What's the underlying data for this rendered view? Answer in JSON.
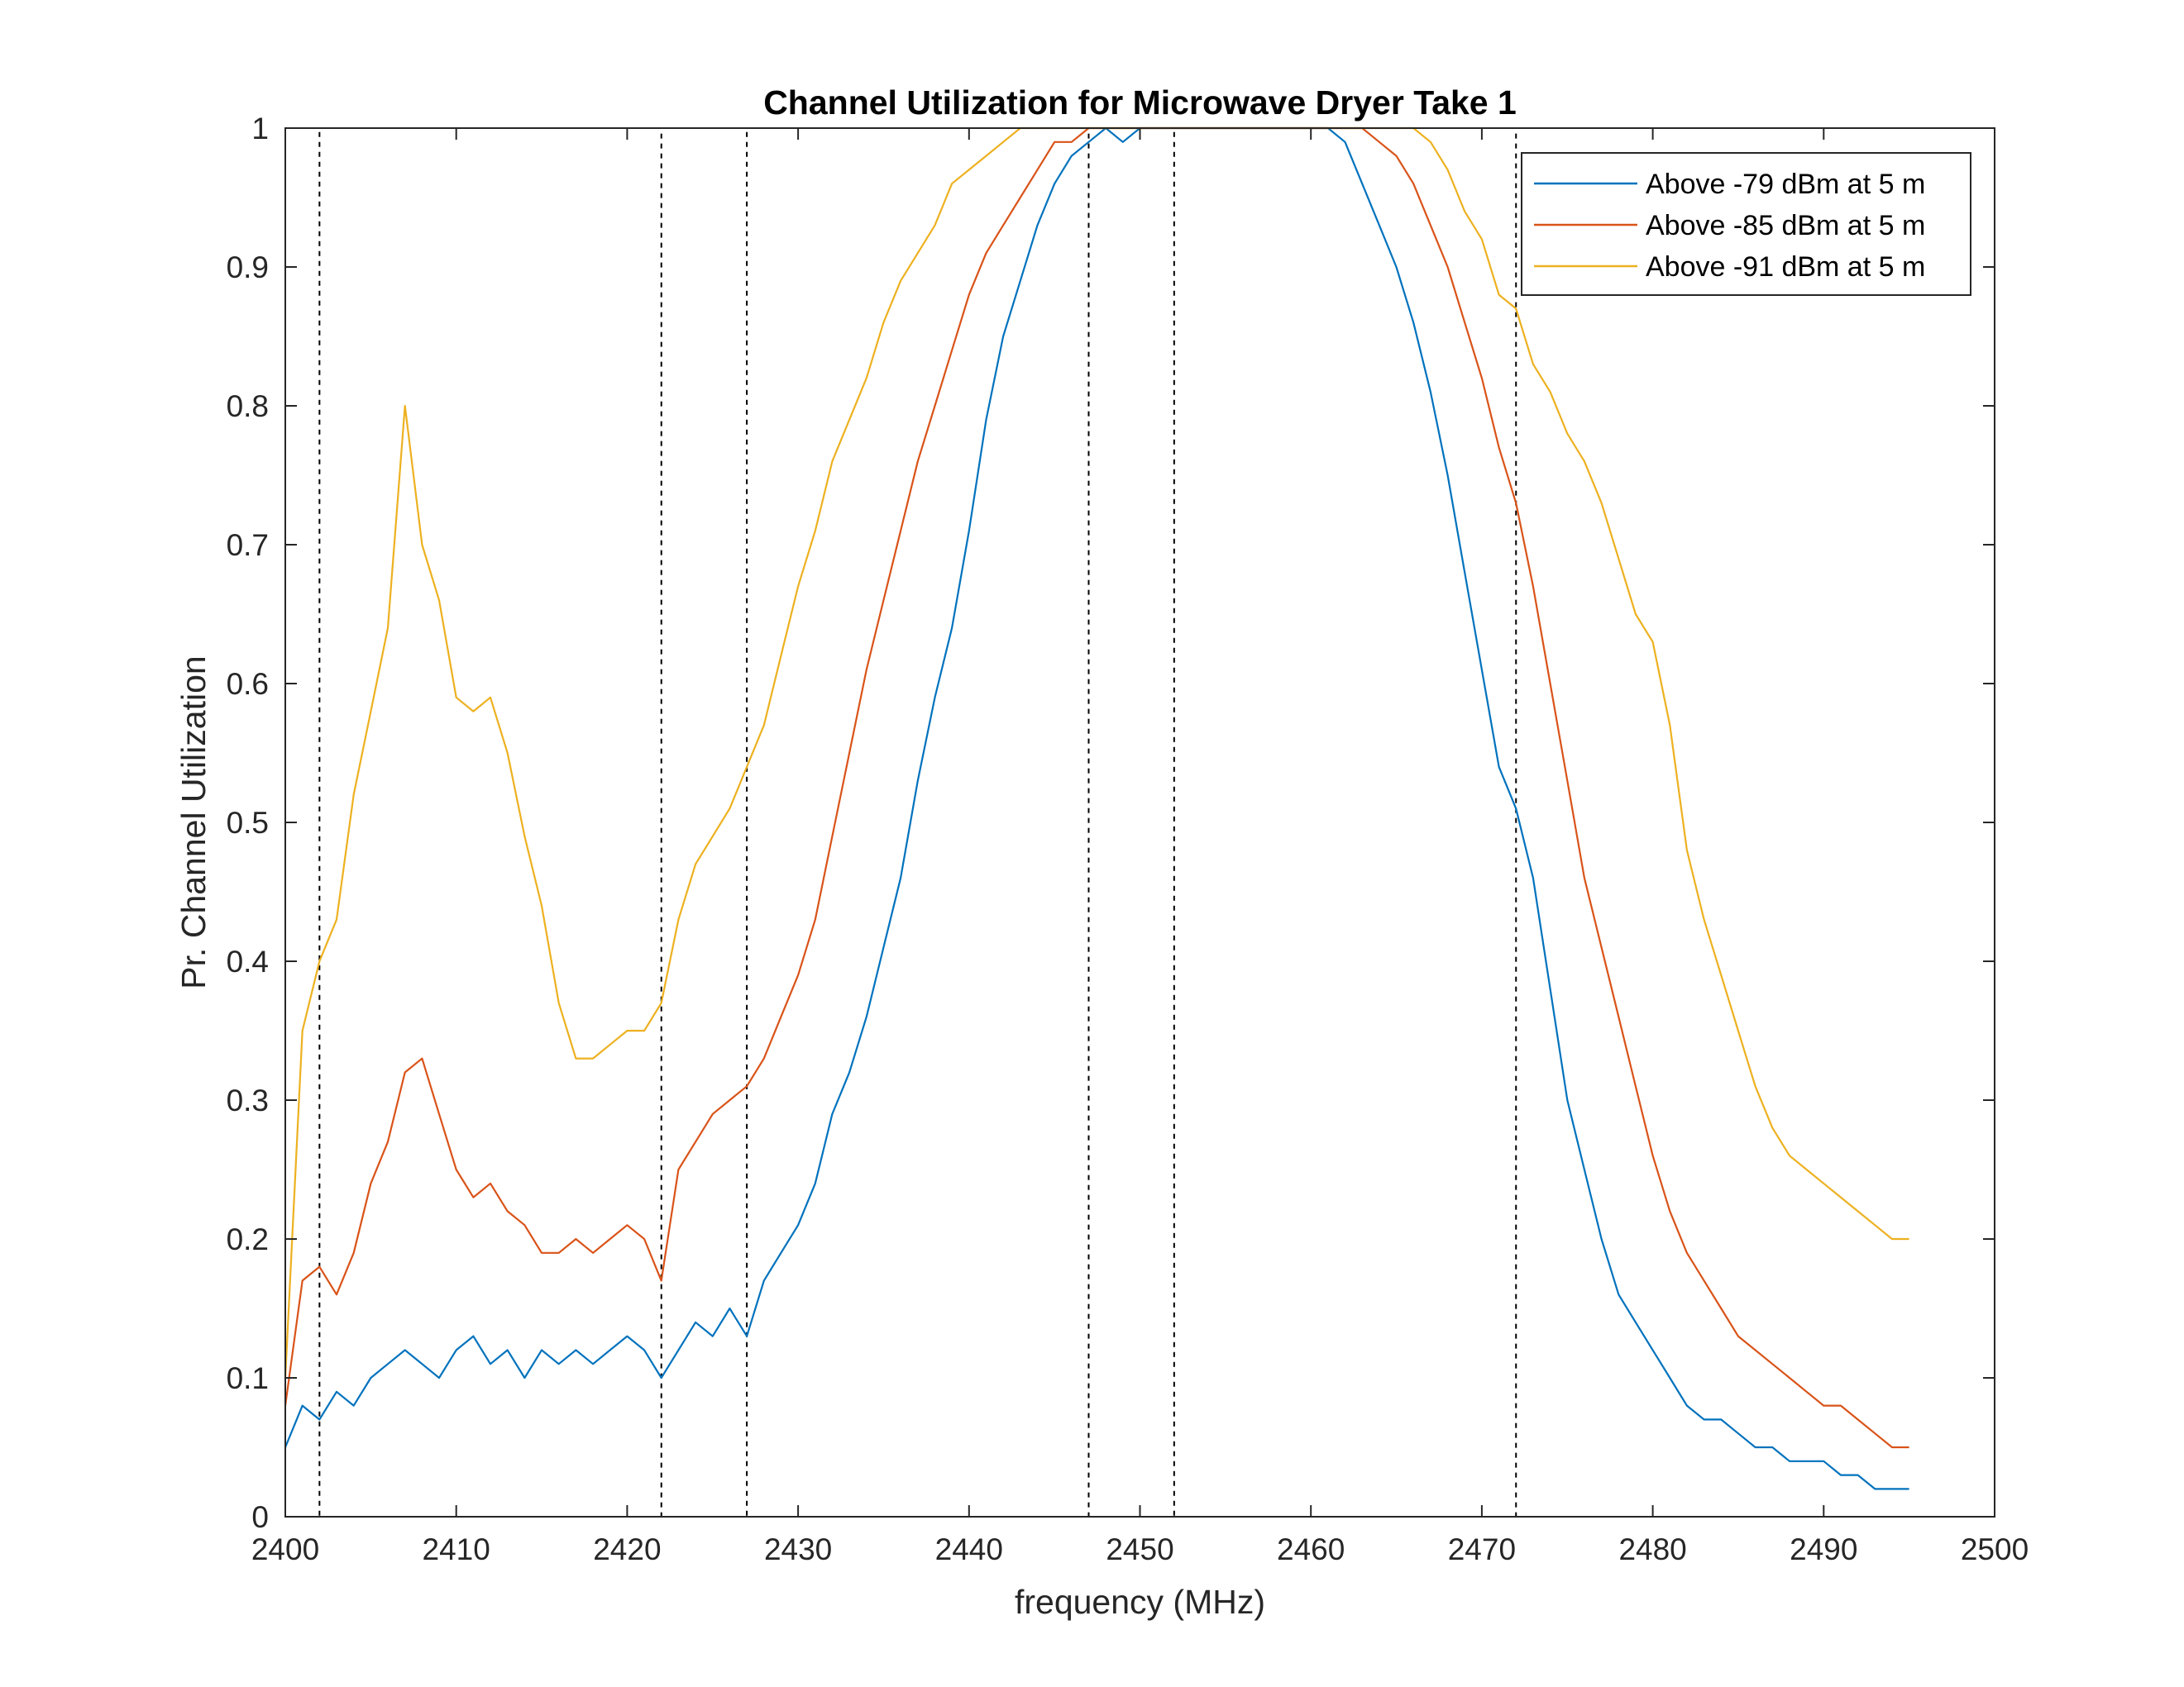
{
  "chart_data": {
    "type": "line",
    "title": "Channel Utilization for Microwave Dryer Take 1",
    "xlabel": "frequency (MHz)",
    "ylabel": "Pr. Channel Utilization",
    "xlim": [
      2400,
      2500
    ],
    "ylim": [
      0,
      1
    ],
    "xticks": [
      2400,
      2410,
      2420,
      2430,
      2440,
      2450,
      2460,
      2470,
      2480,
      2490,
      2500
    ],
    "yticks": [
      0,
      0.1,
      0.2,
      0.3,
      0.4,
      0.5,
      0.6,
      0.7,
      0.8,
      0.9,
      1
    ],
    "grid": false,
    "legend_position": "top-right",
    "channel_boxes": [
      [
        2402,
        2422
      ],
      [
        2427,
        2447
      ],
      [
        2452,
        2472
      ]
    ],
    "series": [
      {
        "name": "Above -79 dBm at 5 m",
        "color": "#0072BD",
        "x": [
          2400,
          2401,
          2402,
          2403,
          2404,
          2405,
          2406,
          2407,
          2408,
          2409,
          2410,
          2411,
          2412,
          2413,
          2414,
          2415,
          2416,
          2417,
          2418,
          2419,
          2420,
          2421,
          2422,
          2423,
          2424,
          2425,
          2426,
          2427,
          2428,
          2429,
          2430,
          2431,
          2432,
          2433,
          2434,
          2435,
          2436,
          2437,
          2438,
          2439,
          2440,
          2441,
          2442,
          2443,
          2444,
          2445,
          2446,
          2447,
          2448,
          2449,
          2450,
          2451,
          2452,
          2453,
          2454,
          2455,
          2456,
          2457,
          2458,
          2459,
          2460,
          2461,
          2462,
          2463,
          2464,
          2465,
          2466,
          2467,
          2468,
          2469,
          2470,
          2471,
          2472,
          2473,
          2474,
          2475,
          2476,
          2477,
          2478,
          2479,
          2480,
          2481,
          2482,
          2483,
          2484,
          2485,
          2486,
          2487,
          2488,
          2489,
          2490,
          2491,
          2492,
          2493,
          2494,
          2495
        ],
        "y": [
          0.05,
          0.08,
          0.07,
          0.09,
          0.08,
          0.1,
          0.11,
          0.12,
          0.11,
          0.1,
          0.12,
          0.13,
          0.11,
          0.12,
          0.1,
          0.12,
          0.11,
          0.12,
          0.11,
          0.12,
          0.13,
          0.12,
          0.1,
          0.12,
          0.14,
          0.13,
          0.15,
          0.13,
          0.17,
          0.19,
          0.21,
          0.24,
          0.29,
          0.32,
          0.36,
          0.41,
          0.46,
          0.53,
          0.59,
          0.64,
          0.71,
          0.79,
          0.85,
          0.89,
          0.93,
          0.96,
          0.98,
          0.99,
          1.0,
          0.99,
          1.0,
          1.0,
          1.0,
          1.0,
          1.0,
          1.0,
          1.0,
          1.0,
          1.0,
          1.0,
          1.0,
          1.0,
          0.99,
          0.96,
          0.93,
          0.9,
          0.86,
          0.81,
          0.75,
          0.68,
          0.61,
          0.54,
          0.51,
          0.46,
          0.38,
          0.3,
          0.25,
          0.2,
          0.16,
          0.14,
          0.12,
          0.1,
          0.08,
          0.07,
          0.07,
          0.06,
          0.05,
          0.05,
          0.04,
          0.04,
          0.04,
          0.03,
          0.03,
          0.02,
          0.02,
          0.02
        ]
      },
      {
        "name": "Above -85 dBm at 5 m",
        "color": "#D95319",
        "x": [
          2400,
          2401,
          2402,
          2403,
          2404,
          2405,
          2406,
          2407,
          2408,
          2409,
          2410,
          2411,
          2412,
          2413,
          2414,
          2415,
          2416,
          2417,
          2418,
          2419,
          2420,
          2421,
          2422,
          2423,
          2424,
          2425,
          2426,
          2427,
          2428,
          2429,
          2430,
          2431,
          2432,
          2433,
          2434,
          2435,
          2436,
          2437,
          2438,
          2439,
          2440,
          2441,
          2442,
          2443,
          2444,
          2445,
          2446,
          2447,
          2448,
          2449,
          2450,
          2451,
          2452,
          2453,
          2454,
          2455,
          2456,
          2457,
          2458,
          2459,
          2460,
          2461,
          2462,
          2463,
          2464,
          2465,
          2466,
          2467,
          2468,
          2469,
          2470,
          2471,
          2472,
          2473,
          2474,
          2475,
          2476,
          2477,
          2478,
          2479,
          2480,
          2481,
          2482,
          2483,
          2484,
          2485,
          2486,
          2487,
          2488,
          2489,
          2490,
          2491,
          2492,
          2493,
          2494,
          2495
        ],
        "y": [
          0.08,
          0.17,
          0.18,
          0.16,
          0.19,
          0.24,
          0.27,
          0.32,
          0.33,
          0.29,
          0.25,
          0.23,
          0.24,
          0.22,
          0.21,
          0.19,
          0.19,
          0.2,
          0.19,
          0.2,
          0.21,
          0.2,
          0.17,
          0.25,
          0.27,
          0.29,
          0.3,
          0.31,
          0.33,
          0.36,
          0.39,
          0.43,
          0.49,
          0.55,
          0.61,
          0.66,
          0.71,
          0.76,
          0.8,
          0.84,
          0.88,
          0.91,
          0.93,
          0.95,
          0.97,
          0.99,
          0.99,
          1.0,
          1.0,
          1.0,
          1.0,
          1.0,
          1.0,
          1.0,
          1.0,
          1.0,
          1.0,
          1.0,
          1.0,
          1.0,
          1.0,
          1.0,
          1.0,
          1.0,
          0.99,
          0.98,
          0.96,
          0.93,
          0.9,
          0.86,
          0.82,
          0.77,
          0.73,
          0.67,
          0.6,
          0.53,
          0.46,
          0.41,
          0.36,
          0.31,
          0.26,
          0.22,
          0.19,
          0.17,
          0.15,
          0.13,
          0.12,
          0.11,
          0.1,
          0.09,
          0.08,
          0.08,
          0.07,
          0.06,
          0.05,
          0.05
        ]
      },
      {
        "name": "Above -91 dBm at 5 m",
        "color": "#EDB120",
        "x": [
          2400,
          2401,
          2402,
          2403,
          2404,
          2405,
          2406,
          2407,
          2408,
          2409,
          2410,
          2411,
          2412,
          2413,
          2414,
          2415,
          2416,
          2417,
          2418,
          2419,
          2420,
          2421,
          2422,
          2423,
          2424,
          2425,
          2426,
          2427,
          2428,
          2429,
          2430,
          2431,
          2432,
          2433,
          2434,
          2435,
          2436,
          2437,
          2438,
          2439,
          2440,
          2441,
          2442,
          2443,
          2444,
          2445,
          2446,
          2447,
          2448,
          2449,
          2450,
          2451,
          2452,
          2453,
          2454,
          2455,
          2456,
          2457,
          2458,
          2459,
          2460,
          2461,
          2462,
          2463,
          2464,
          2465,
          2466,
          2467,
          2468,
          2469,
          2470,
          2471,
          2472,
          2473,
          2474,
          2475,
          2476,
          2477,
          2478,
          2479,
          2480,
          2481,
          2482,
          2483,
          2484,
          2485,
          2486,
          2487,
          2488,
          2489,
          2490,
          2491,
          2492,
          2493,
          2494,
          2495
        ],
        "y": [
          0.1,
          0.35,
          0.4,
          0.43,
          0.52,
          0.58,
          0.64,
          0.8,
          0.7,
          0.66,
          0.59,
          0.58,
          0.59,
          0.55,
          0.49,
          0.44,
          0.37,
          0.33,
          0.33,
          0.34,
          0.35,
          0.35,
          0.37,
          0.43,
          0.47,
          0.49,
          0.51,
          0.54,
          0.57,
          0.62,
          0.67,
          0.71,
          0.76,
          0.79,
          0.82,
          0.86,
          0.89,
          0.91,
          0.93,
          0.96,
          0.97,
          0.98,
          0.99,
          1.0,
          1.0,
          1.0,
          1.0,
          1.0,
          1.0,
          1.0,
          1.0,
          1.0,
          1.0,
          1.0,
          1.0,
          1.0,
          1.0,
          1.0,
          1.0,
          1.0,
          1.0,
          1.0,
          1.0,
          1.0,
          1.0,
          1.0,
          1.0,
          0.99,
          0.97,
          0.94,
          0.92,
          0.88,
          0.87,
          0.83,
          0.81,
          0.78,
          0.76,
          0.73,
          0.69,
          0.65,
          0.63,
          0.57,
          0.48,
          0.43,
          0.39,
          0.35,
          0.31,
          0.28,
          0.26,
          0.25,
          0.24,
          0.23,
          0.22,
          0.21,
          0.2,
          0.2
        ]
      }
    ]
  }
}
